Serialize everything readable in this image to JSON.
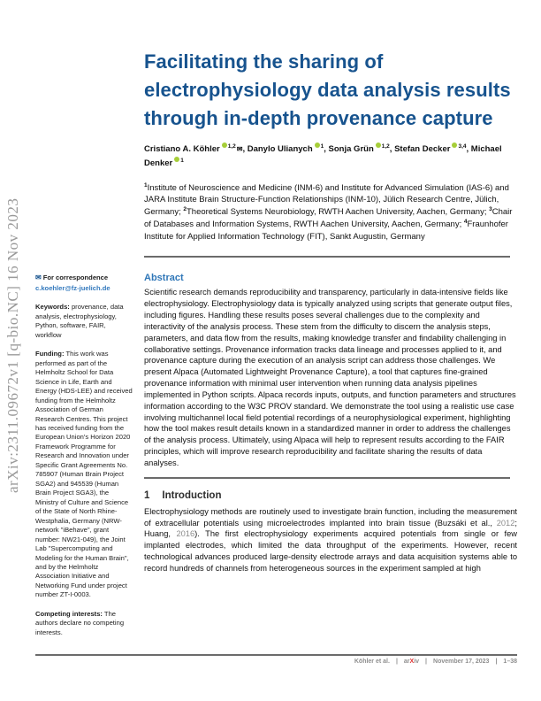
{
  "watermark": "arXiv:2311.09672v1  [q-bio.NC]  16 Nov 2023",
  "title": "Facilitating the sharing of electrophysiology data analysis results through in-depth provenance capture",
  "authors": [
    {
      "name": "Cristiano A. Köhler",
      "sup": "1,2",
      "orcid": true,
      "corresponding": true
    },
    {
      "name": "Danylo Ulianych",
      "sup": "1",
      "orcid": true,
      "corresponding": false
    },
    {
      "name": "Sonja Grün",
      "sup": "1,2",
      "orcid": true,
      "corresponding": false
    },
    {
      "name": "Stefan Decker",
      "sup": "3,4",
      "orcid": true,
      "corresponding": false
    },
    {
      "name": "Michael Denker",
      "sup": "1",
      "orcid": true,
      "corresponding": false
    }
  ],
  "affiliations": [
    {
      "sup": "1",
      "text": "Institute of Neuroscience and Medicine (INM-6) and Institute for Advanced Simulation (IAS-6) and JARA Institute Brain Structure-Function Relationships (INM-10), Jülich Research Centre, Jülich, Germany; "
    },
    {
      "sup": "2",
      "text": "Theoretical Systems Neurobiology, RWTH Aachen University, Aachen, Germany; "
    },
    {
      "sup": "3",
      "text": "Chair of Databases and Information Systems, RWTH Aachen University, Aachen, Germany; "
    },
    {
      "sup": "4",
      "text": "Fraunhofer Institute for Applied Information Technology (FIT), Sankt Augustin, Germany"
    }
  ],
  "sidebar": {
    "correspondence_label": "For correspondence",
    "email": "c.koehler@fz-juelich.de",
    "keywords_label": "Keywords:",
    "keywords_text": " provenance, data analysis, electrophysiology, Python, software, FAIR, workflow",
    "funding_label": "Funding:",
    "funding_text": " This work was performed as part of the Helmholtz School for Data Science in Life, Earth and Energy (HDS-LEE) and received funding from the Helmholtz Association of German Research Centres. This project has received funding from the European Union's Horizon 2020 Framework Programme for Research and Innovation under Specific Grant Agreements No. 785907 (Human Brain Project SGA2) and 945539 (Human Brain Project SGA3), the Ministry of Culture and Science of the State of North Rhine-Westphalia, Germany (NRW-network \"iBehave\", grant number: NW21-049), the Joint Lab \"Supercomputing and Modeling for the Human Brain\", and by the Helmholtz Association Initiative and Networking Fund under project number ZT-I-0003.",
    "competing_label": "Competing interests:",
    "competing_text": " The authors declare no competing interests."
  },
  "abstract": {
    "heading": "Abstract",
    "text": "Scientific research demands reproducibility and transparency, particularly in data-intensive fields like electrophysiology. Electrophysiology data is typically analyzed using scripts that generate output files, including figures. Handling these results poses several challenges due to the complexity and interactivity of the analysis process. These stem from the difficulty to discern the analysis steps, parameters, and data flow from the results, making knowledge transfer and findability challenging in collaborative settings. Provenance information tracks data lineage and processes applied to it, and provenance capture during the execution of an analysis script can address those challenges. We present Alpaca (Automated Lightweight Provenance Capture), a tool that captures fine-grained provenance information with minimal user intervention when running data analysis pipelines implemented in Python scripts. Alpaca records inputs, outputs, and function parameters and structures information according to the W3C PROV standard. We demonstrate the tool using a realistic use case involving multichannel local field potential recordings of a neurophysiological experiment, highlighting how the tool makes result details known in a standardized manner in order to address the challenges of the analysis process. Ultimately, using Alpaca will help to represent results according to the FAIR principles, which will improve research reproducibility and facilitate sharing the results of data analyses."
  },
  "introduction": {
    "number": "1",
    "heading": "Introduction",
    "segments": [
      {
        "text": "Electrophysiology methods are routinely used to investigate brain function, including the measurement of extracellular potentials using microelectrodes implanted into brain tissue (Buzsáki et al., ",
        "cite": false
      },
      {
        "text": "2012",
        "cite": true
      },
      {
        "text": "; Huang, ",
        "cite": false
      },
      {
        "text": "2016",
        "cite": true
      },
      {
        "text": "). The first electrophysiology experiments acquired potentials from single or few implanted electrodes, which limited the data throughput of the experiments. However, recent technological advances produced large-density electrode arrays and data acquisition systems able to record hundreds of channels from heterogeneous sources in the experiment sampled at high",
        "cite": false
      }
    ]
  },
  "footer": {
    "authors": "Köhler et al.",
    "brand_pre": "ar",
    "brand_x": "X",
    "brand_post": "iv",
    "date": "November 17, 2023",
    "pages": "1–38",
    "separator": "|"
  },
  "colors": {
    "title_blue": "#17538e",
    "heading_blue": "#3077b8",
    "link_blue": "#3379bd",
    "orcid_green": "#a6ce39",
    "citation_gray": "#8c8c8c",
    "rule_gray": "#6b6b6b",
    "footer_gray": "#8f8f8f",
    "brand_red": "#e03131"
  }
}
